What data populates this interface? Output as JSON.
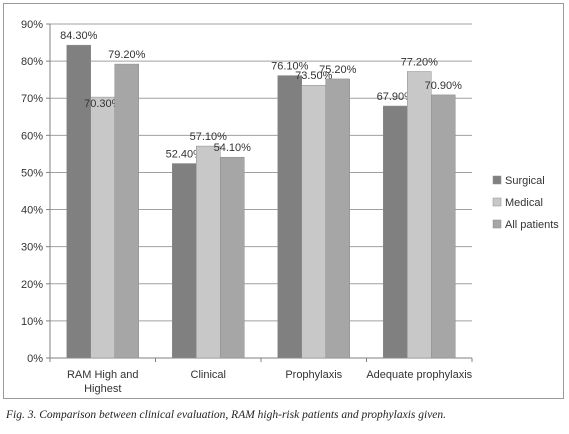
{
  "chart_data": {
    "type": "bar",
    "categories": [
      "RAM High and Highest",
      "Clinical",
      "Prophylaxis",
      "Adequate prophylaxis"
    ],
    "category_lines": [
      [
        "RAM High and",
        "Highest"
      ],
      [
        "Clinical"
      ],
      [
        "Prophylaxis"
      ],
      [
        "Adequate prophylaxis"
      ]
    ],
    "series": [
      {
        "name": "Surgical",
        "values": [
          84.3,
          52.4,
          76.1,
          67.9
        ],
        "color": "#808080"
      },
      {
        "name": "Medical",
        "values": [
          70.3,
          57.1,
          73.5,
          77.2
        ],
        "color": "#c8c8c8"
      },
      {
        "name": "All patients",
        "values": [
          79.2,
          54.1,
          75.2,
          70.9
        ],
        "color": "#a6a6a6"
      }
    ],
    "data_labels": [
      [
        "84.30%",
        "52.40%",
        "76.10%",
        "67.90%"
      ],
      [
        "70.30%",
        "57.10%",
        "73.50%",
        "77.20%"
      ],
      [
        "79.20%",
        "54.10%",
        "75.20%",
        "70.90%"
      ]
    ],
    "yticks": [
      "0%",
      "10%",
      "20%",
      "30%",
      "40%",
      "50%",
      "60%",
      "70%",
      "80%",
      "90%"
    ],
    "ylim": [
      0,
      90
    ],
    "grid": true,
    "legend_position": "right",
    "title": "",
    "xlabel": "",
    "ylabel": ""
  },
  "caption": "Fig. 3. Comparison between clinical evaluation, RAM high-risk patients and prophylaxis given."
}
